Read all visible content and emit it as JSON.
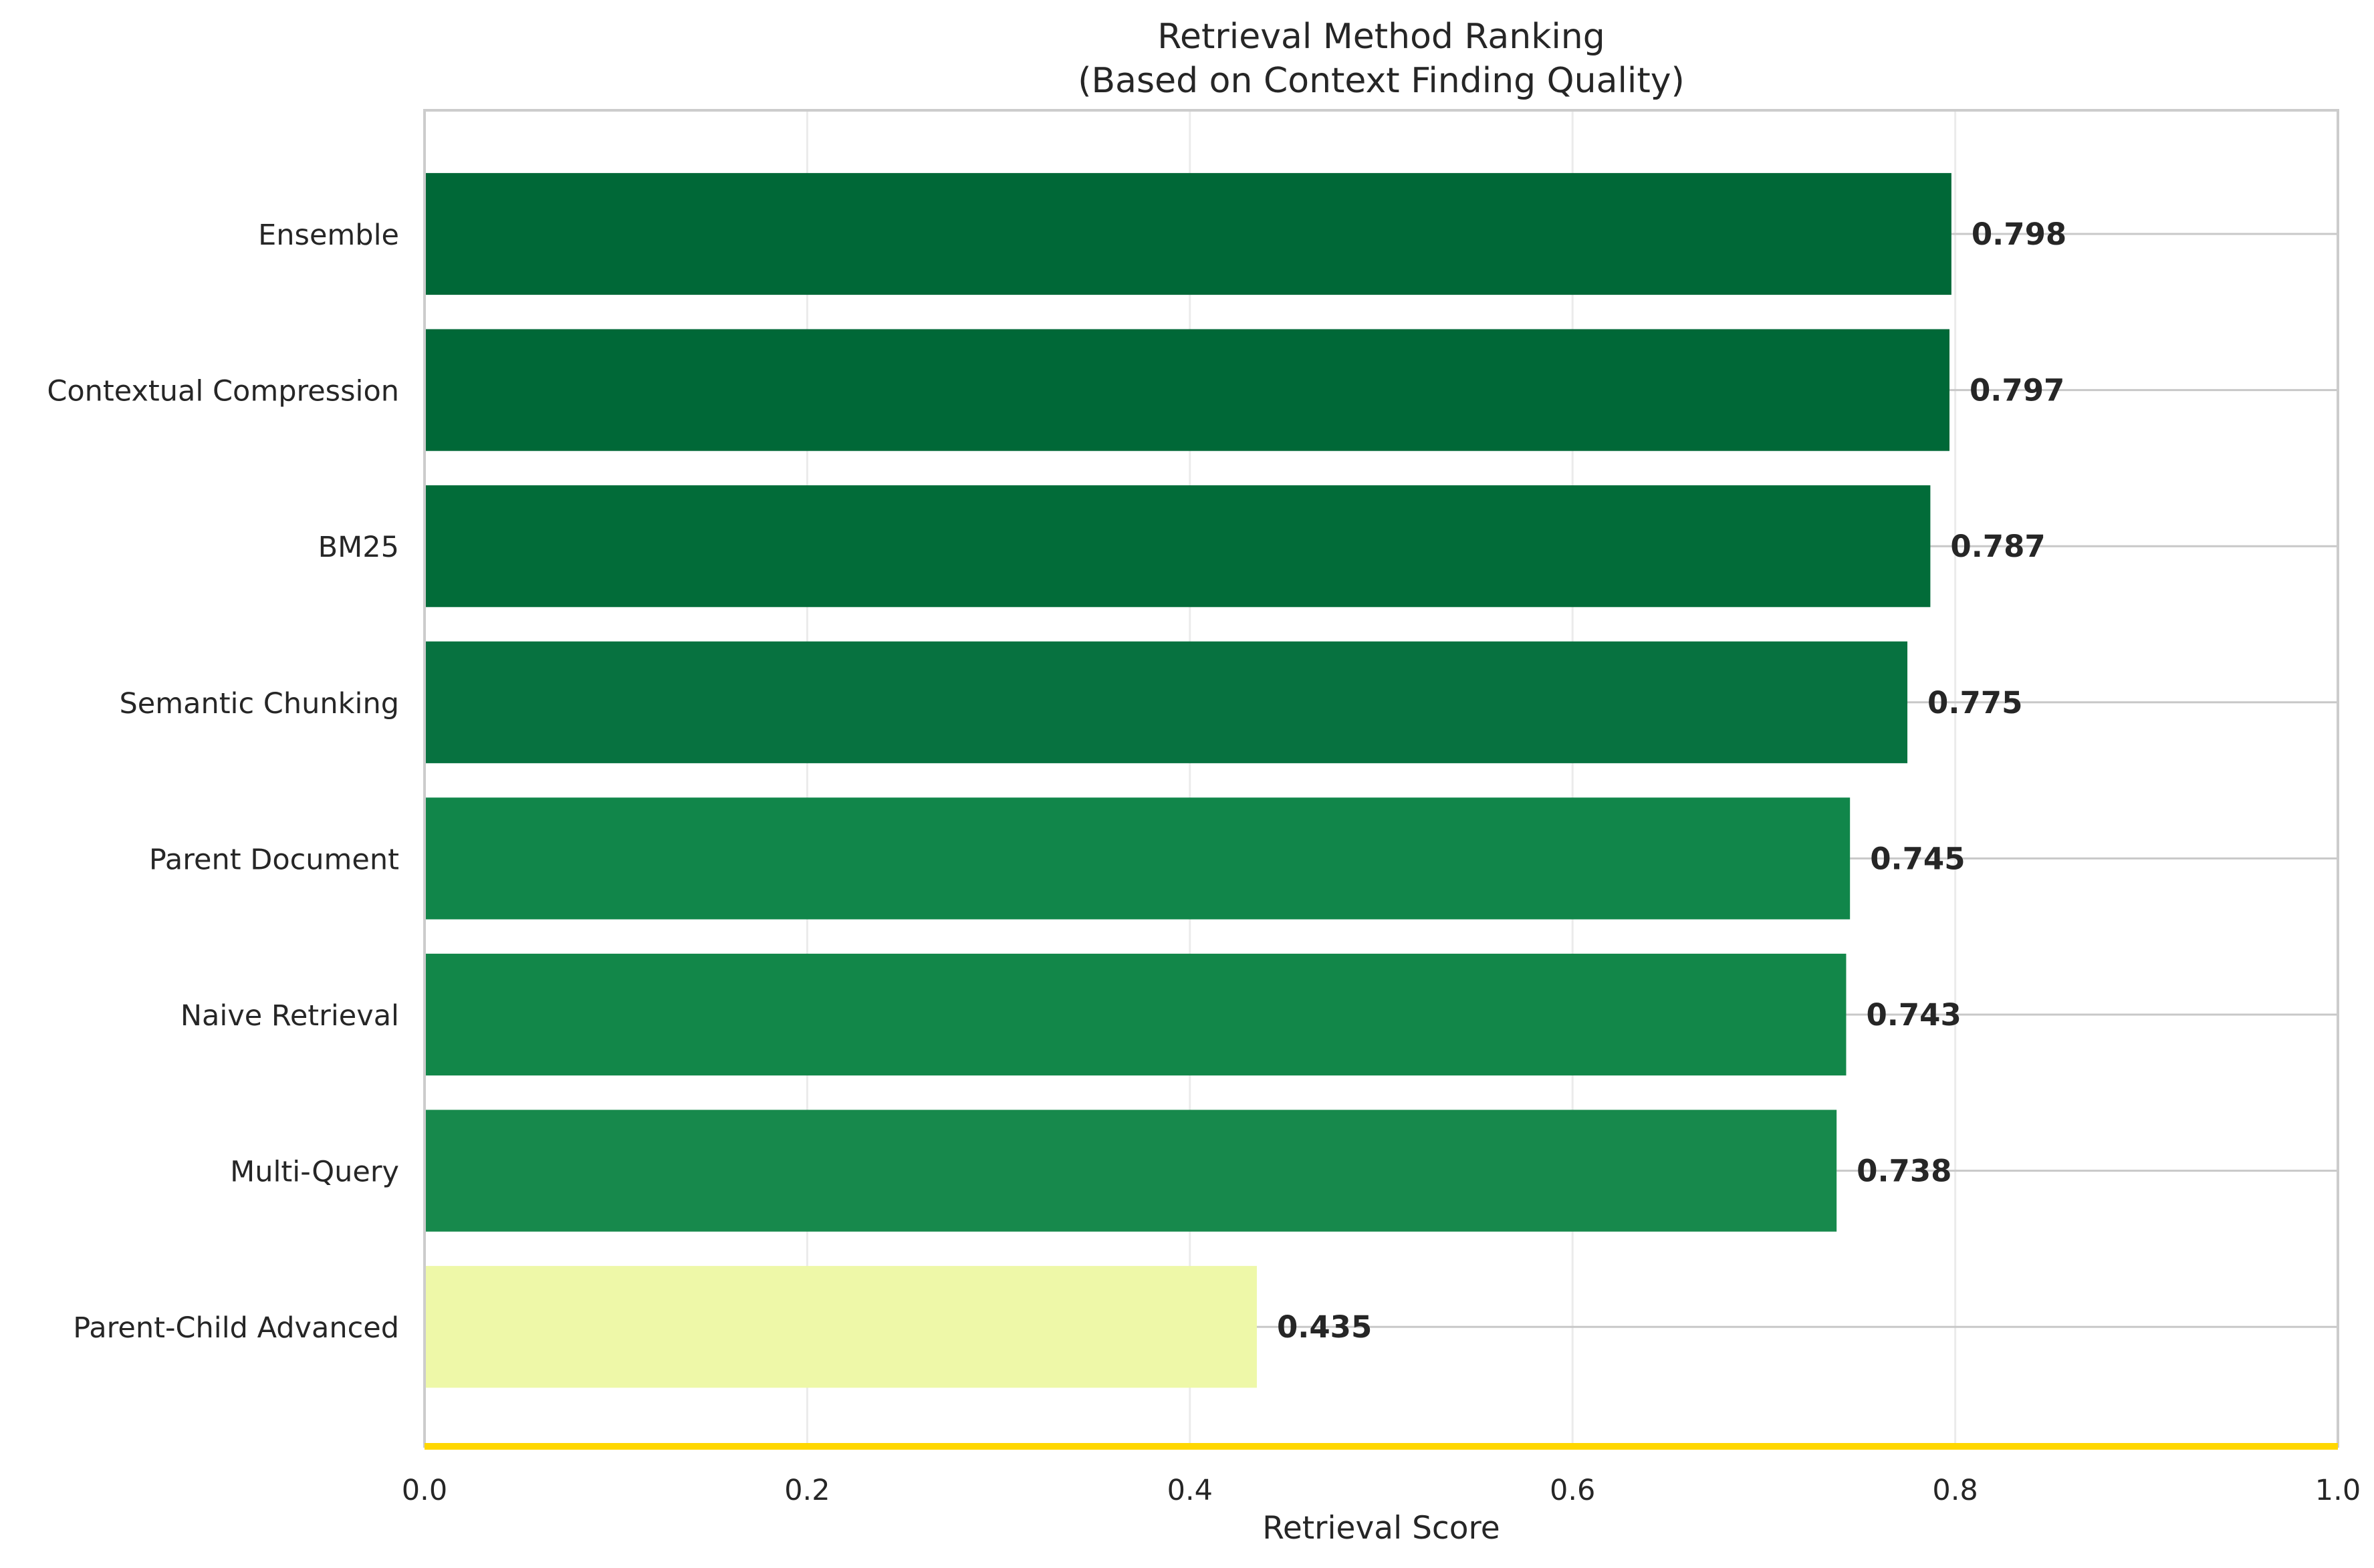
{
  "chart_data": {
    "type": "bar",
    "orientation": "horizontal",
    "title": "Retrieval Method Ranking",
    "subtitle": "(Based on Context Finding Quality)",
    "xlabel": "Retrieval Score",
    "ylabel": "",
    "xlim": [
      0,
      1.0
    ],
    "xticks": [
      0.0,
      0.2,
      0.4,
      0.6,
      0.8,
      1.0
    ],
    "xtick_labels": [
      "0.0",
      "0.2",
      "0.4",
      "0.6",
      "0.8",
      "1.0"
    ],
    "grid": true,
    "categories": [
      "Ensemble",
      "Contextual Compression",
      "BM25",
      "Semantic Chunking",
      "Parent Document",
      "Naive Retrieval",
      "Multi-Query",
      "Parent-Child Advanced"
    ],
    "values": [
      0.798,
      0.797,
      0.787,
      0.775,
      0.745,
      0.743,
      0.738,
      0.435
    ],
    "value_labels": [
      "0.798",
      "0.797",
      "0.787",
      "0.775",
      "0.745",
      "0.743",
      "0.738",
      "0.435"
    ],
    "colors": [
      "#006837",
      "#006837",
      "#026c39",
      "#077240",
      "#11864a",
      "#128749",
      "#17894c",
      "#eef8a8"
    ],
    "baseline_color": "#ffd700"
  }
}
